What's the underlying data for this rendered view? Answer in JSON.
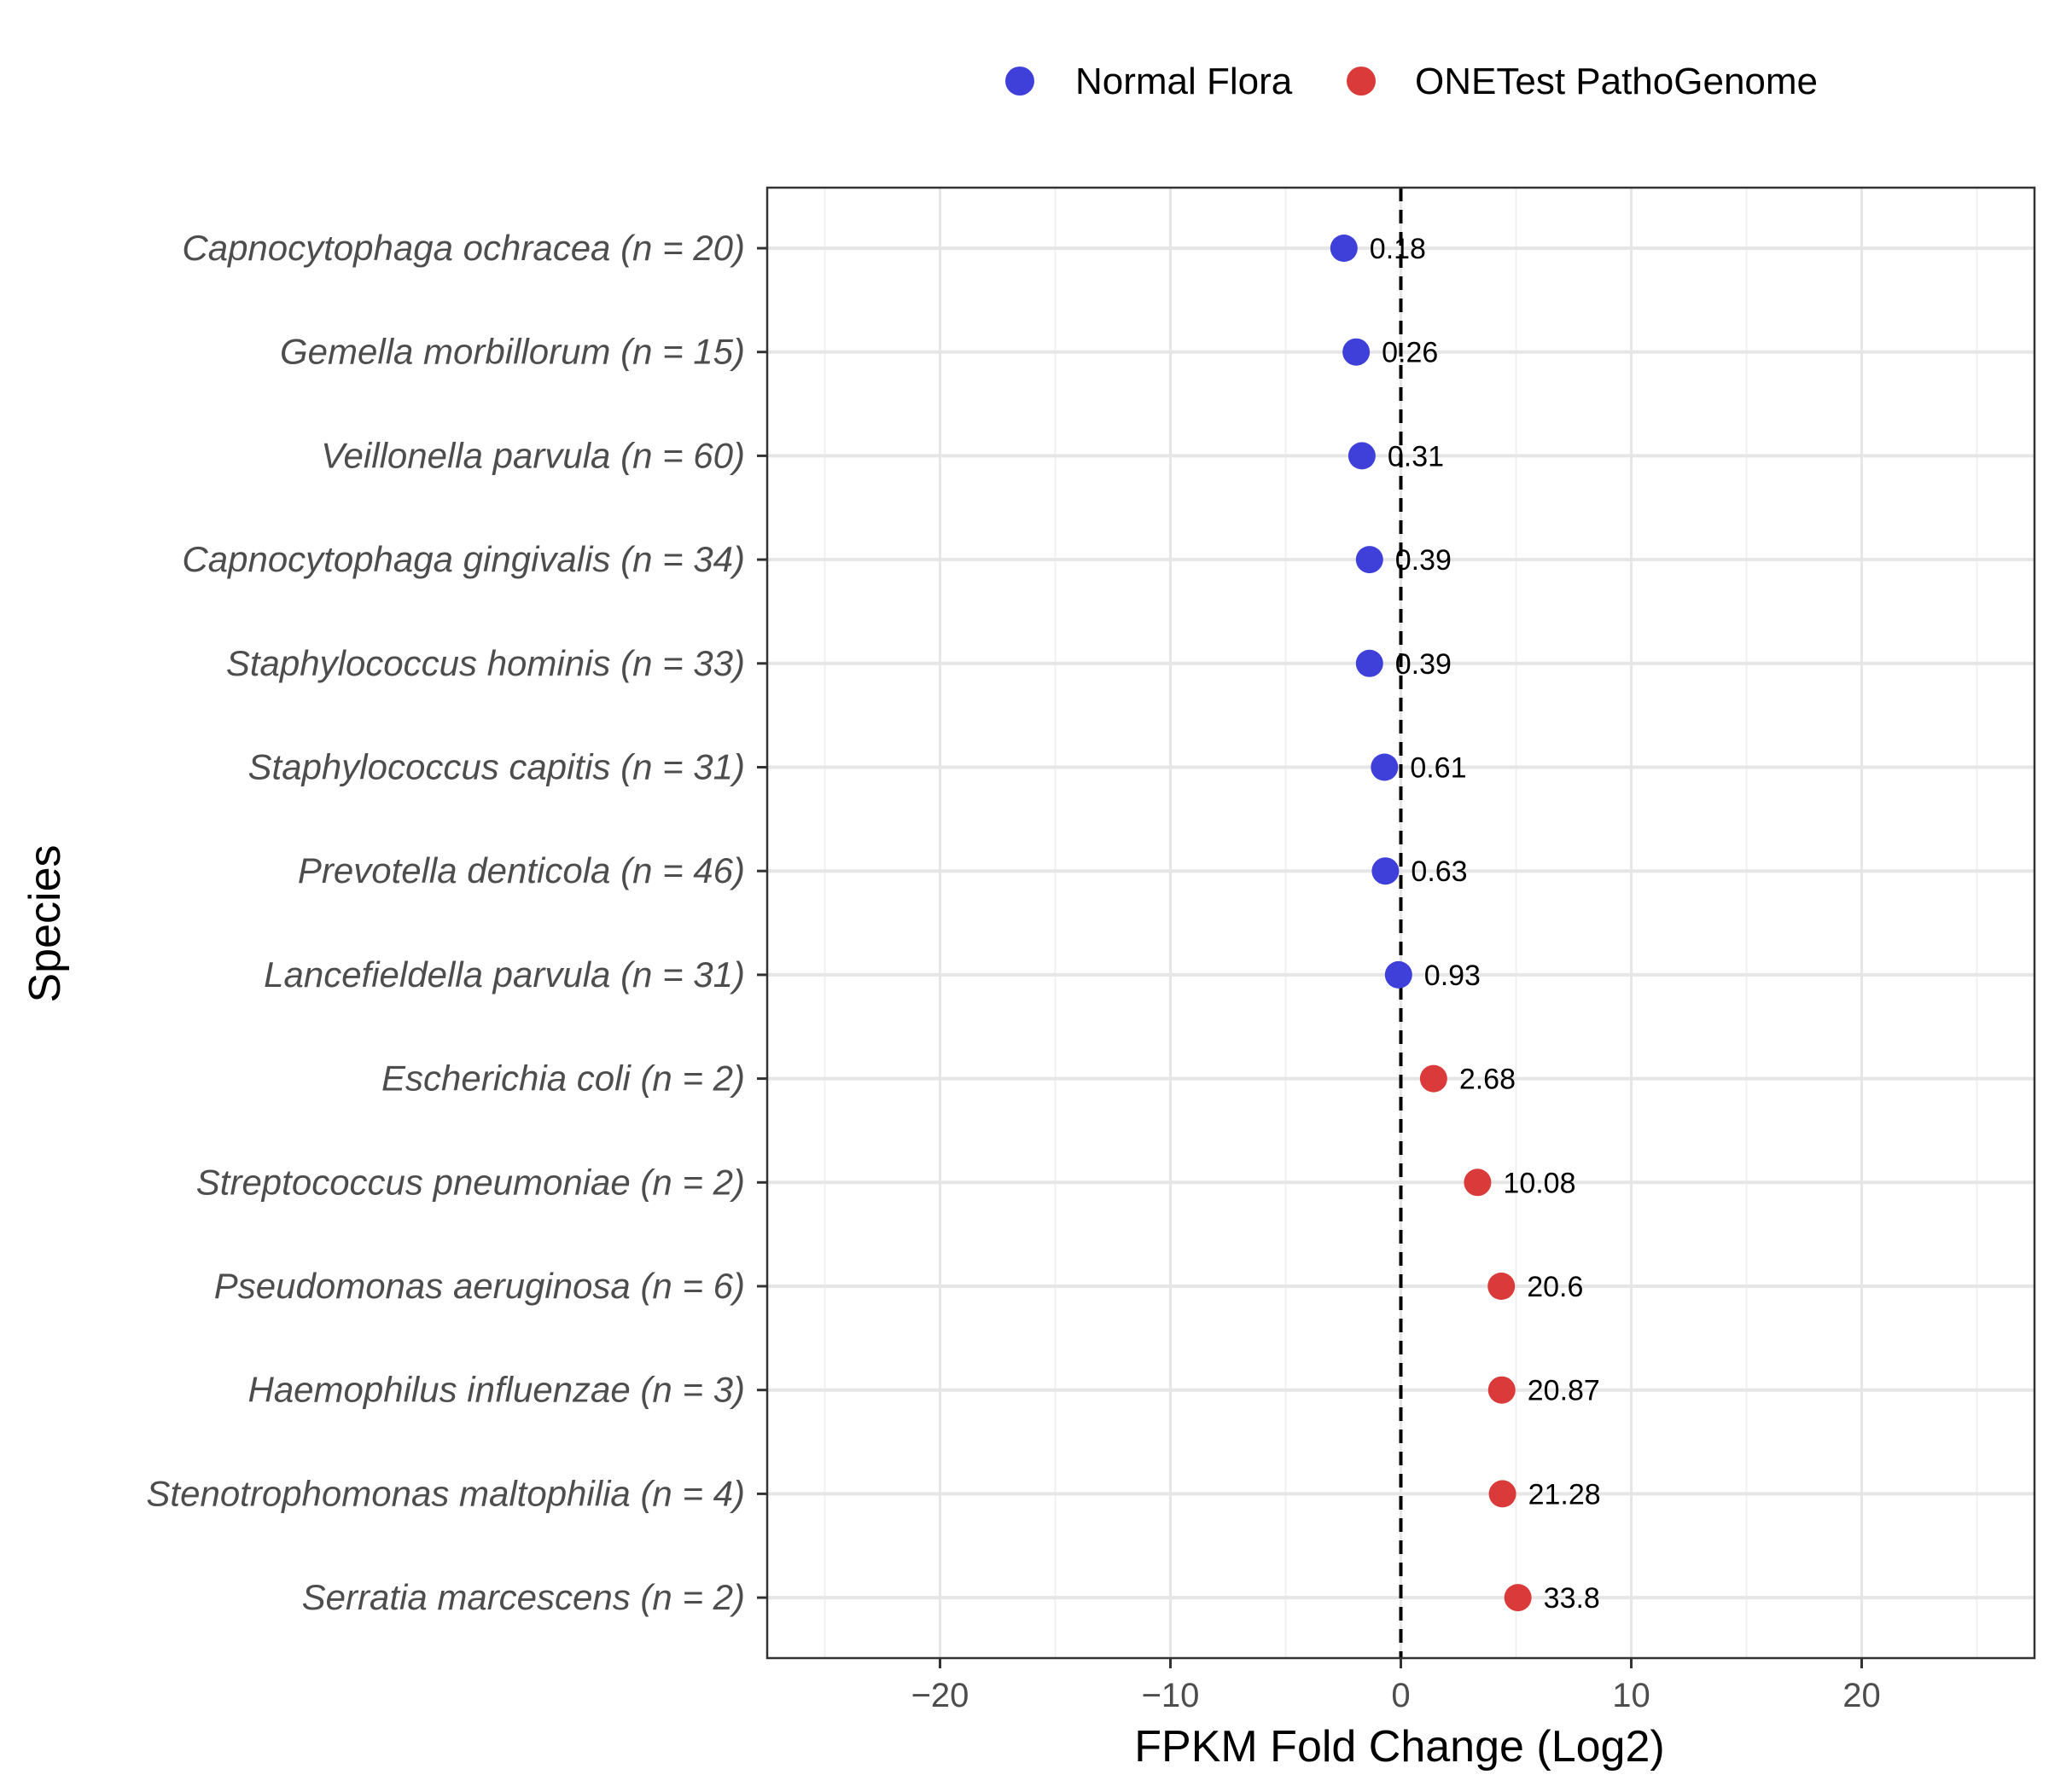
{
  "chart_data": {
    "type": "scatter",
    "xlabel": "FPKM Fold Change (Log2)",
    "ylabel": "Species",
    "xlim": [
      -27.5,
      27.5
    ],
    "x_ticks": [
      -20,
      -10,
      0,
      10,
      20
    ],
    "x_tick_labels": [
      "−20",
      "−10",
      "0",
      "10",
      "20"
    ],
    "reference_line": {
      "x": 0,
      "style": "dashed"
    },
    "grid": true,
    "legend": {
      "position": "top",
      "entries": [
        {
          "name": "Normal Flora",
          "color": "#3f3fd9"
        },
        {
          "name": "ONETest PathoGenome",
          "color": "#da3a3a"
        }
      ]
    },
    "categories": [
      "Capnocytophaga ochracea (n = 20)",
      "Gemella morbillorum (n = 15)",
      "Veillonella parvula (n = 60)",
      "Capnocytophaga gingivalis (n = 34)",
      "Staphylococcus hominis (n = 33)",
      "Staphylococcus capitis (n = 31)",
      "Prevotella denticola (n = 46)",
      "Lancefieldella parvula (n = 31)",
      "Escherichia coli (n = 2)",
      "Streptococcus pneumoniae (n = 2)",
      "Pseudomonas aeruginosa (n = 6)",
      "Haemophilus influenzae (n = 3)",
      "Stenotrophomonas maltophilia (n = 4)",
      "Serratia marcescens (n = 2)"
    ],
    "series": [
      {
        "name": "Normal Flora",
        "color": "#3f3fd9",
        "points": [
          {
            "category": "Capnocytophaga ochracea (n = 20)",
            "x": -2.47,
            "label": "0.18"
          },
          {
            "category": "Gemella morbillorum (n = 15)",
            "x": -1.94,
            "label": "0.26"
          },
          {
            "category": "Veillonella parvula (n = 60)",
            "x": -1.69,
            "label": "0.31"
          },
          {
            "category": "Capnocytophaga gingivalis (n = 34)",
            "x": -1.36,
            "label": "0.39"
          },
          {
            "category": "Staphylococcus hominis (n = 33)",
            "x": -1.36,
            "label": "0.39"
          },
          {
            "category": "Staphylococcus capitis (n = 31)",
            "x": -0.71,
            "label": "0.61"
          },
          {
            "category": "Prevotella denticola (n = 46)",
            "x": -0.67,
            "label": "0.63"
          },
          {
            "category": "Lancefieldella parvula (n = 31)",
            "x": -0.1,
            "label": "0.93"
          }
        ]
      },
      {
        "name": "ONETest PathoGenome",
        "color": "#da3a3a",
        "points": [
          {
            "category": "Escherichia coli (n = 2)",
            "x": 1.42,
            "label": "2.68"
          },
          {
            "category": "Streptococcus pneumoniae (n = 2)",
            "x": 3.33,
            "label": "10.08"
          },
          {
            "category": "Pseudomonas aeruginosa (n = 6)",
            "x": 4.36,
            "label": "20.6"
          },
          {
            "category": "Haemophilus influenzae (n = 3)",
            "x": 4.38,
            "label": "20.87"
          },
          {
            "category": "Stenotrophomonas maltophilia (n = 4)",
            "x": 4.41,
            "label": "21.28"
          },
          {
            "category": "Serratia marcescens (n = 2)",
            "x": 5.08,
            "label": "33.8"
          }
        ]
      }
    ]
  }
}
